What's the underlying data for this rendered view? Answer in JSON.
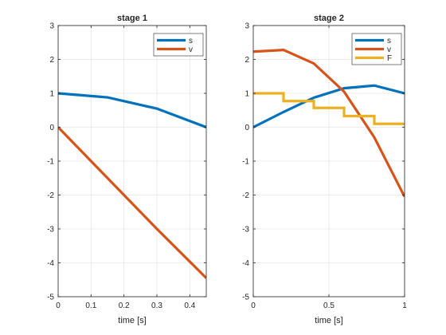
{
  "chart_data": [
    {
      "type": "line",
      "title": "stage 1",
      "xlabel": "time [s]",
      "ylabel": "",
      "xlim": [
        0,
        0.45
      ],
      "ylim": [
        -5,
        3
      ],
      "xticks": [
        0,
        0.1,
        0.2,
        0.3,
        0.4
      ],
      "xtick_labels": [
        "0",
        "0.1",
        "0.2",
        "0.3",
        "0.4"
      ],
      "yticks": [
        -5,
        -4,
        -3,
        -2,
        -1,
        0,
        1,
        2,
        3
      ],
      "ytick_labels": [
        "-5",
        "-4",
        "-3",
        "-2",
        "-1",
        "0",
        "1",
        "2",
        "3"
      ],
      "grid": true,
      "legend_position": "top-right",
      "series": [
        {
          "name": "s",
          "color": "#0072BD",
          "step": false,
          "x": [
            0,
            0.15,
            0.3,
            0.45
          ],
          "y": [
            1.0,
            0.88,
            0.55,
            0.0
          ]
        },
        {
          "name": "v",
          "color": "#D95319",
          "step": false,
          "x": [
            0,
            0.15,
            0.3,
            0.45
          ],
          "y": [
            0.0,
            -1.5,
            -3.0,
            -4.45
          ]
        }
      ]
    },
    {
      "type": "line",
      "title": "stage 2",
      "xlabel": "time [s]",
      "ylabel": "",
      "xlim": [
        0,
        1
      ],
      "ylim": [
        -5,
        3
      ],
      "xticks": [
        0,
        0.5,
        1
      ],
      "xtick_labels": [
        "0",
        "0.5",
        "1"
      ],
      "yticks": [
        -5,
        -4,
        -3,
        -2,
        -1,
        0,
        1,
        2,
        3
      ],
      "ytick_labels": [
        "-5",
        "-4",
        "-3",
        "-2",
        "-1",
        "0",
        "1",
        "2",
        "3"
      ],
      "grid": true,
      "legend_position": "top-right",
      "series": [
        {
          "name": "s",
          "color": "#0072BD",
          "step": false,
          "x": [
            0,
            0.2,
            0.4,
            0.6,
            0.8,
            1.0
          ],
          "y": [
            0.0,
            0.45,
            0.87,
            1.15,
            1.23,
            1.0
          ]
        },
        {
          "name": "v",
          "color": "#D95319",
          "step": false,
          "x": [
            0,
            0.2,
            0.4,
            0.6,
            0.8,
            1.0
          ],
          "y": [
            2.23,
            2.28,
            1.88,
            1.05,
            -0.3,
            -2.05
          ]
        },
        {
          "name": "F",
          "color": "#EDB120",
          "step": true,
          "x": [
            0,
            0.2,
            0.4,
            0.6,
            0.8,
            1.0
          ],
          "y": [
            1.0,
            0.77,
            0.57,
            0.33,
            0.1,
            0.1
          ]
        }
      ]
    }
  ]
}
